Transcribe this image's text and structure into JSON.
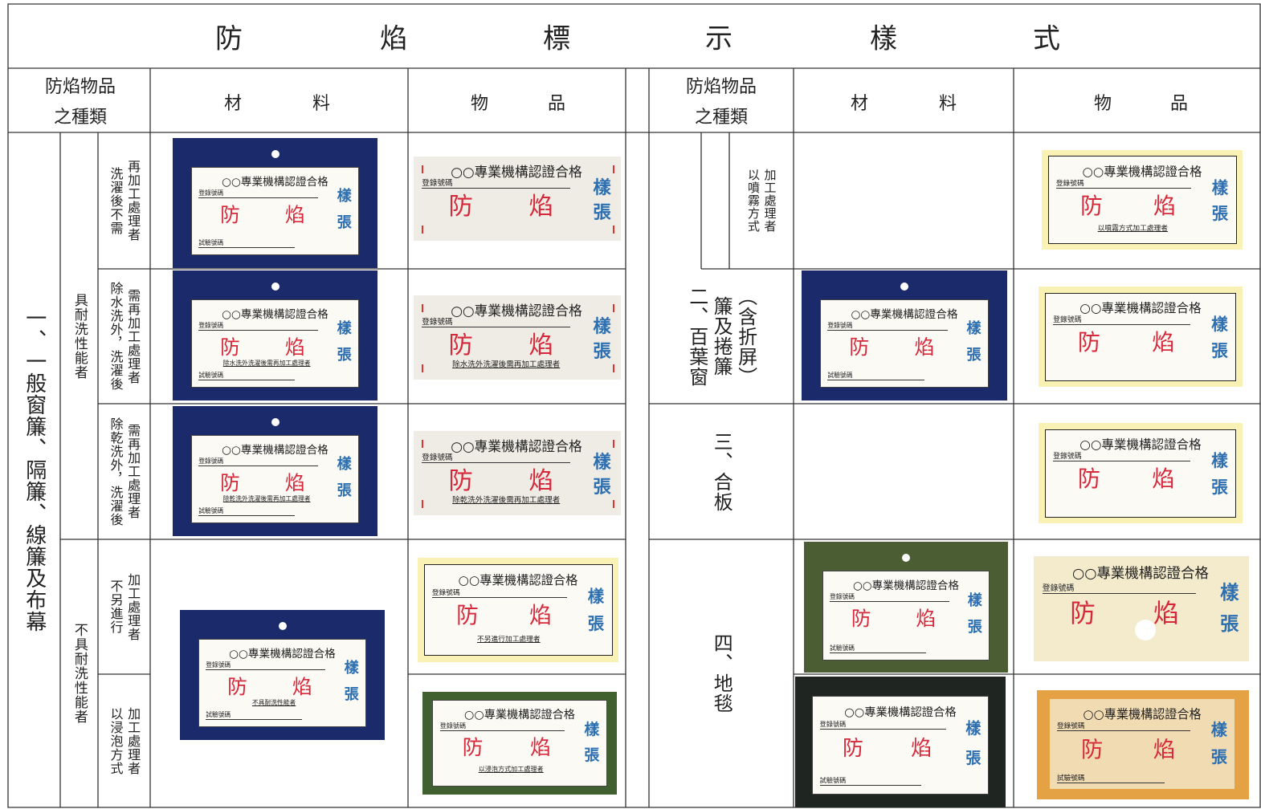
{
  "title": [
    "防",
    "焰",
    "標",
    "示",
    "樣",
    "式"
  ],
  "left_header": {
    "category": [
      "防焰物品",
      "之種類"
    ],
    "material": [
      "材",
      "料"
    ],
    "product": [
      "物",
      "品"
    ]
  },
  "right_header": {
    "category": [
      "防焰物品",
      "之種類"
    ],
    "material": [
      "材",
      "料"
    ],
    "product": [
      "物",
      "品"
    ]
  },
  "left": {
    "main": [
      "一、一般窗簾、隔簾、線簾及布幕"
    ],
    "groups": [
      [
        "具耐洗性能者"
      ],
      [
        "不具耐洗性能者"
      ]
    ],
    "subs": [
      [
        "洗濯後不需",
        "再加工處理者"
      ],
      [
        "除水洗外，洗濯後",
        "需再加工處理者"
      ],
      [
        "除乾洗外，洗濯後",
        "需再加工處理者"
      ],
      [
        "不另進行",
        "加工處理者"
      ],
      [
        "以浸泡方式",
        "加工處理者"
      ]
    ],
    "materials": [
      {
        "style": "navy",
        "header": "○○專業機構認證合格",
        "reg": "登錄號碼",
        "fang": "防",
        "yan": "焰",
        "yang": "樣",
        "zhang": "張",
        "test": "試驗號碼"
      },
      {
        "style": "navy",
        "header": "○○專業機構認證合格",
        "reg": "登錄號碼",
        "fang": "防",
        "yan": "焰",
        "yang": "樣",
        "zhang": "張",
        "note": "除水洗外洗濯後需再加工處理者",
        "test": "試驗號碼"
      },
      {
        "style": "navy",
        "header": "○○專業機構認證合格",
        "reg": "登錄號碼",
        "fang": "防",
        "yan": "焰",
        "yang": "樣",
        "zhang": "張",
        "note": "除乾洗外洗濯後需再加工處理者",
        "test": "試驗號碼"
      },
      {
        "style": "navy",
        "header": "○○專業機構認證合格",
        "reg": "登錄號碼",
        "fang": "防",
        "yan": "焰",
        "yang": "樣",
        "zhang": "張",
        "note": "不具耐洗性能者",
        "test": "試驗號碼"
      }
    ],
    "products": [
      {
        "style": "cloth",
        "header": "○○專業機構認證合格",
        "reg": "登錄號碼",
        "fang": "防",
        "yan": "焰",
        "yang": "樣",
        "zhang": "張"
      },
      {
        "style": "cloth",
        "header": "○○專業機構認證合格",
        "reg": "登錄號碼",
        "fang": "防",
        "yan": "焰",
        "yang": "樣",
        "zhang": "張",
        "note": "除水洗外洗濯後需再加工處理者"
      },
      {
        "style": "cloth",
        "header": "○○專業機構認證合格",
        "reg": "登錄號碼",
        "fang": "防",
        "yan": "焰",
        "yang": "樣",
        "zhang": "張",
        "note": "除乾洗外洗濯後需再加工處理者"
      },
      {
        "style": "cream",
        "header": "○○專業機構認證合格",
        "reg": "登錄號碼",
        "fang": "防",
        "yan": "焰",
        "yang": "樣",
        "zhang": "張",
        "note": "不另進行加工處理者"
      },
      {
        "style": "greenframe",
        "header": "○○專業機構認證合格",
        "reg": "登錄號碼",
        "fang": "防",
        "yan": "焰",
        "yang": "樣",
        "zhang": "張",
        "note": "以浸泡方式加工處理者"
      }
    ]
  },
  "right": {
    "sub": [
      "以噴霧方式",
      "加工處理者"
    ],
    "categories": [
      [
        "二、百葉窗",
        "簾及捲簾",
        "（含折屏）"
      ],
      [
        "三、合板"
      ],
      [
        "四、地毯"
      ]
    ],
    "materials": [
      {
        "style": "navy",
        "header": "○○專業機構認證合格",
        "reg": "登錄號碼",
        "fang": "防",
        "yan": "焰",
        "yang": "樣",
        "zhang": "張",
        "test": "試驗號碼"
      },
      {
        "style": "green",
        "header": "○○專業機構認證合格",
        "reg": "登錄號碼",
        "fang": "防",
        "yan": "焰",
        "yang": "樣",
        "zhang": "張",
        "test": "試驗號碼"
      },
      {
        "style": "black",
        "header": "○○專業機構認證合格",
        "reg": "登錄號碼",
        "fang": "防",
        "yan": "焰",
        "yang": "樣",
        "zhang": "張",
        "test": "試驗號碼"
      }
    ],
    "products": [
      {
        "style": "cream",
        "header": "○○專業機構認證合格",
        "reg": "登錄號碼",
        "fang": "防",
        "yan": "焰",
        "yang": "樣",
        "zhang": "張",
        "note": "以噴霧方式加工處理者"
      },
      {
        "style": "cream",
        "header": "○○專業機構認證合格",
        "reg": "登錄號碼",
        "fang": "防",
        "yan": "焰",
        "yang": "樣",
        "zhang": "張"
      },
      {
        "style": "cream",
        "header": "○○專業機構認證合格",
        "reg": "登錄號碼",
        "fang": "防",
        "yan": "焰",
        "yang": "樣",
        "zhang": "張"
      },
      {
        "style": "plain",
        "header": "○○專業機構認證合格",
        "reg": "登錄號碼",
        "fang": "防",
        "yan": "焰",
        "yang": "樣",
        "zhang": "張"
      },
      {
        "style": "orange",
        "header": "○○專業機構認證合格",
        "reg": "登錄號碼",
        "fang": "防",
        "yan": "焰",
        "yang": "樣",
        "zhang": "張",
        "test": "試驗號碼"
      }
    ]
  }
}
